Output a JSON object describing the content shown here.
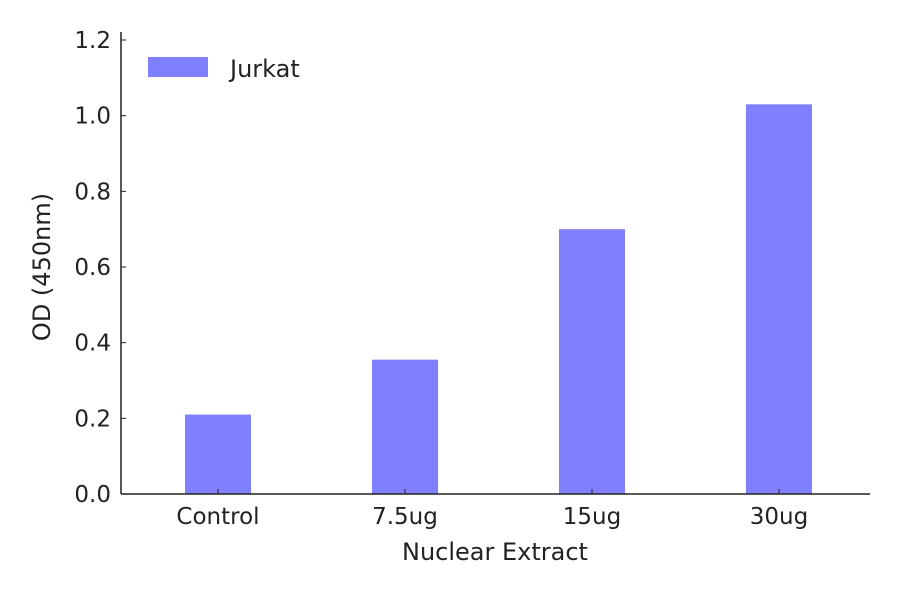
{
  "chart_data": {
    "type": "bar",
    "title": "",
    "xlabel": "Nuclear Extract",
    "ylabel": "OD (450nm)",
    "categories": [
      "Control",
      "7.5ug",
      "15ug",
      "30ug"
    ],
    "series": [
      {
        "name": "Jurkat",
        "values": [
          0.21,
          0.355,
          0.7,
          1.03
        ],
        "color": "#8080ff"
      }
    ],
    "ylim": [
      0,
      1.2
    ],
    "yticks": [
      "0.0",
      "0.2",
      "0.4",
      "0.6",
      "0.8",
      "1.0",
      "1.2"
    ],
    "grid": false,
    "legend_position": "top-left"
  }
}
